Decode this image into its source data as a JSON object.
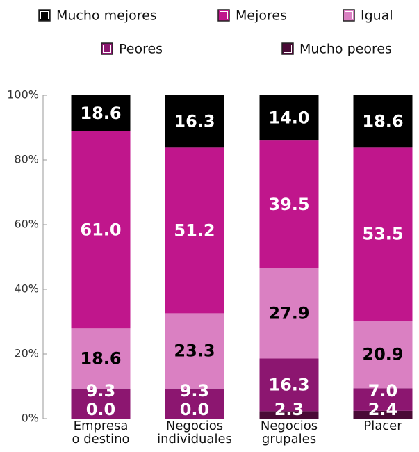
{
  "chart_data": {
    "type": "stacked_bar",
    "categories": [
      "Empresa\no destino",
      "Negocios\nindividuales",
      "Negocios\ngrupales",
      "Placer"
    ],
    "series": [
      {
        "name": "Mucho peores",
        "color": "#4a0a36",
        "values": [
          0.0,
          0.0,
          2.3,
          2.4
        ],
        "value_labels": [
          "0.0",
          "0.0",
          "2.3",
          "2.4"
        ]
      },
      {
        "name": "Peores",
        "color": "#8c1670",
        "values": [
          9.3,
          9.3,
          16.3,
          7.0
        ],
        "value_labels": [
          "9.3",
          "9.3",
          "16.3",
          "7.0"
        ]
      },
      {
        "name": "Igual",
        "color": "#da80c2",
        "values": [
          18.6,
          23.3,
          27.9,
          20.9
        ],
        "value_labels": [
          "18.6",
          "23.3",
          "27.9",
          "20.9"
        ]
      },
      {
        "name": "Mejores",
        "color": "#c0168c",
        "values": [
          61.0,
          51.2,
          39.5,
          53.5
        ],
        "value_labels": [
          "61.0",
          "51.2",
          "39.5",
          "53.5"
        ]
      },
      {
        "name": "Mucho mejores",
        "color": "#000000",
        "values": [
          18.6,
          16.3,
          14.0,
          18.6
        ],
        "value_labels": [
          "18.6",
          "16.3",
          "14.0",
          "18.6"
        ]
      }
    ],
    "ylim": [
      0,
      100
    ],
    "yticks": [
      {
        "value": 0,
        "label": "0%"
      },
      {
        "value": 20,
        "label": "20%"
      },
      {
        "value": 40,
        "label": "40%"
      },
      {
        "value": 60,
        "label": "60%"
      },
      {
        "value": 80,
        "label": "80%"
      },
      {
        "value": 100,
        "label": "100%"
      }
    ]
  }
}
